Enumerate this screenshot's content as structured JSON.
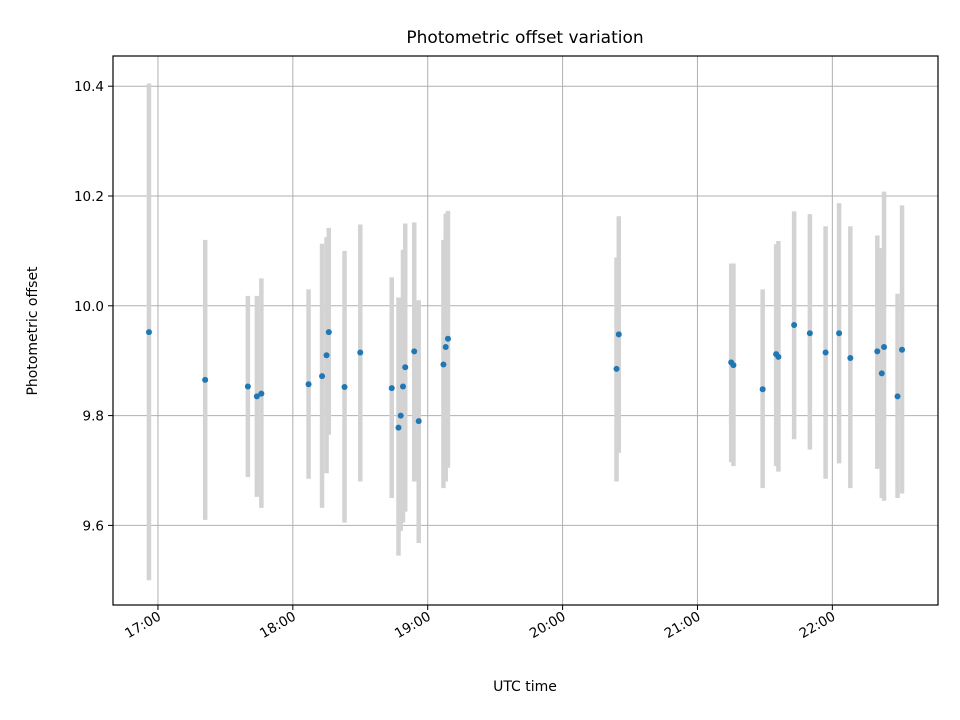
{
  "chart_data": {
    "type": "scatter",
    "title": "Photometric offset variation",
    "xlabel": "UTC time",
    "ylabel": "Photometric offset",
    "x_is_time": true,
    "xlim": [
      "16:40",
      "22:47"
    ],
    "ylim": [
      9.455,
      10.455
    ],
    "xticks": [
      "17:00",
      "18:00",
      "19:00",
      "20:00",
      "21:00",
      "22:00"
    ],
    "yticks": [
      9.6,
      9.8,
      10.0,
      10.2,
      10.4
    ],
    "ytick_labels": [
      "9.6",
      "9.8",
      "10.0",
      "10.2",
      "10.4"
    ],
    "grid": true,
    "point_color": "#1f77b4",
    "errorbar_color": "#d3d3d3",
    "points": [
      {
        "t": "16:56",
        "y": 9.952,
        "lo": 9.5,
        "hi": 10.405
      },
      {
        "t": "17:21",
        "y": 9.865,
        "lo": 9.61,
        "hi": 10.12
      },
      {
        "t": "17:40",
        "y": 9.853,
        "lo": 9.688,
        "hi": 10.018
      },
      {
        "t": "17:44",
        "y": 9.835,
        "lo": 9.652,
        "hi": 10.018
      },
      {
        "t": "17:46",
        "y": 9.84,
        "lo": 9.632,
        "hi": 10.05
      },
      {
        "t": "18:07",
        "y": 9.857,
        "lo": 9.685,
        "hi": 10.03
      },
      {
        "t": "18:13",
        "y": 9.872,
        "lo": 9.632,
        "hi": 10.113
      },
      {
        "t": "18:15",
        "y": 9.91,
        "lo": 9.695,
        "hi": 10.125
      },
      {
        "t": "18:16",
        "y": 9.952,
        "lo": 9.765,
        "hi": 10.142
      },
      {
        "t": "18:23",
        "y": 9.852,
        "lo": 9.605,
        "hi": 10.1
      },
      {
        "t": "18:30",
        "y": 9.915,
        "lo": 9.68,
        "hi": 10.148
      },
      {
        "t": "18:44",
        "y": 9.85,
        "lo": 9.65,
        "hi": 10.052
      },
      {
        "t": "18:47",
        "y": 9.778,
        "lo": 9.545,
        "hi": 10.015
      },
      {
        "t": "18:48",
        "y": 9.8,
        "lo": 9.59,
        "hi": 10.015
      },
      {
        "t": "18:49",
        "y": 9.853,
        "lo": 9.605,
        "hi": 10.102
      },
      {
        "t": "18:50",
        "y": 9.888,
        "lo": 9.625,
        "hi": 10.15
      },
      {
        "t": "18:54",
        "y": 9.917,
        "lo": 9.68,
        "hi": 10.152
      },
      {
        "t": "18:56",
        "y": 9.79,
        "lo": 9.568,
        "hi": 10.01
      },
      {
        "t": "19:07",
        "y": 9.893,
        "lo": 9.668,
        "hi": 10.12
      },
      {
        "t": "19:08",
        "y": 9.925,
        "lo": 9.68,
        "hi": 10.168
      },
      {
        "t": "19:09",
        "y": 9.94,
        "lo": 9.705,
        "hi": 10.173
      },
      {
        "t": "20:24",
        "y": 9.885,
        "lo": 9.68,
        "hi": 10.088
      },
      {
        "t": "20:25",
        "y": 9.948,
        "lo": 9.732,
        "hi": 10.163
      },
      {
        "t": "21:15",
        "y": 9.897,
        "lo": 9.715,
        "hi": 10.077
      },
      {
        "t": "21:16",
        "y": 9.892,
        "lo": 9.708,
        "hi": 10.077
      },
      {
        "t": "21:29",
        "y": 9.848,
        "lo": 9.668,
        "hi": 10.03
      },
      {
        "t": "21:35",
        "y": 9.912,
        "lo": 9.708,
        "hi": 10.112
      },
      {
        "t": "21:36",
        "y": 9.907,
        "lo": 9.698,
        "hi": 10.118
      },
      {
        "t": "21:43",
        "y": 9.965,
        "lo": 9.757,
        "hi": 10.172
      },
      {
        "t": "21:50",
        "y": 9.95,
        "lo": 9.738,
        "hi": 10.167
      },
      {
        "t": "21:57",
        "y": 9.915,
        "lo": 9.685,
        "hi": 10.145
      },
      {
        "t": "22:03",
        "y": 9.95,
        "lo": 9.713,
        "hi": 10.187
      },
      {
        "t": "22:08",
        "y": 9.905,
        "lo": 9.668,
        "hi": 10.145
      },
      {
        "t": "22:20",
        "y": 9.917,
        "lo": 9.703,
        "hi": 10.128
      },
      {
        "t": "22:22",
        "y": 9.877,
        "lo": 9.65,
        "hi": 10.105
      },
      {
        "t": "22:23",
        "y": 9.925,
        "lo": 9.645,
        "hi": 10.208
      },
      {
        "t": "22:29",
        "y": 9.835,
        "lo": 9.65,
        "hi": 10.022
      },
      {
        "t": "22:31",
        "y": 9.92,
        "lo": 9.658,
        "hi": 10.183
      }
    ]
  }
}
